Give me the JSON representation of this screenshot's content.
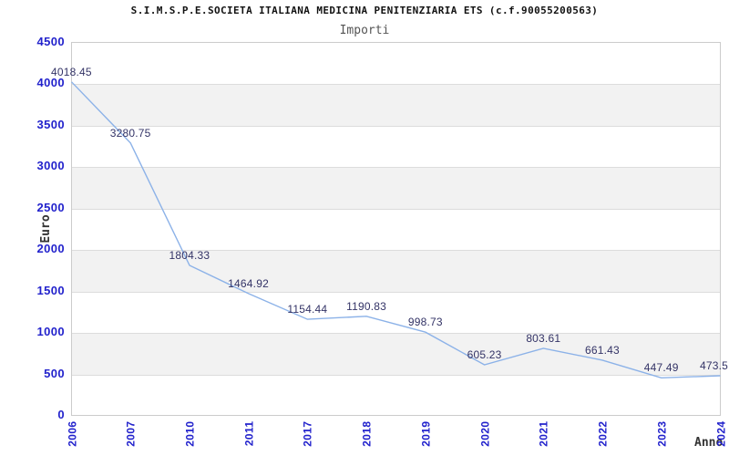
{
  "chart_data": {
    "type": "line",
    "title": "S.I.M.S.P.E.SOCIETA ITALIANA MEDICINA PENITENZIARIA ETS (c.f.90055200563)",
    "subtitle": "Importi",
    "xlabel": "Anno",
    "ylabel": "Euro",
    "categories": [
      "2006",
      "2007",
      "2010",
      "2011",
      "2017",
      "2018",
      "2019",
      "2020",
      "2021",
      "2022",
      "2023",
      "2024"
    ],
    "values": [
      4018.45,
      3280.75,
      1804.33,
      1464.92,
      1154.44,
      1190.83,
      998.73,
      605.23,
      803.61,
      661.43,
      447.49,
      473.5
    ],
    "point_labels": [
      "4018.45",
      "3280.75",
      "1804.33",
      "1464.92",
      "1154.44",
      "1190.83",
      "998.73",
      "605.23",
      "803.61",
      "661.43",
      "447.49",
      "473.5"
    ],
    "ylim": [
      0,
      4500
    ],
    "ytick_step": 500,
    "yticks": [
      0,
      500,
      1000,
      1500,
      2000,
      2500,
      3000,
      3500,
      4000,
      4500
    ],
    "grid": "horizontal-bands",
    "legend_position": "none",
    "colors": {
      "line": "#8cb2e8",
      "axis_tick_text": "#2222cc",
      "point_label_text": "#333366",
      "band_gray": "#f2f2f2",
      "gridline": "#dcdcdc",
      "plot_border": "#cccccc",
      "title_text": "#111111",
      "subtitle_text": "#555555",
      "axis_title_text": "#333333"
    }
  }
}
